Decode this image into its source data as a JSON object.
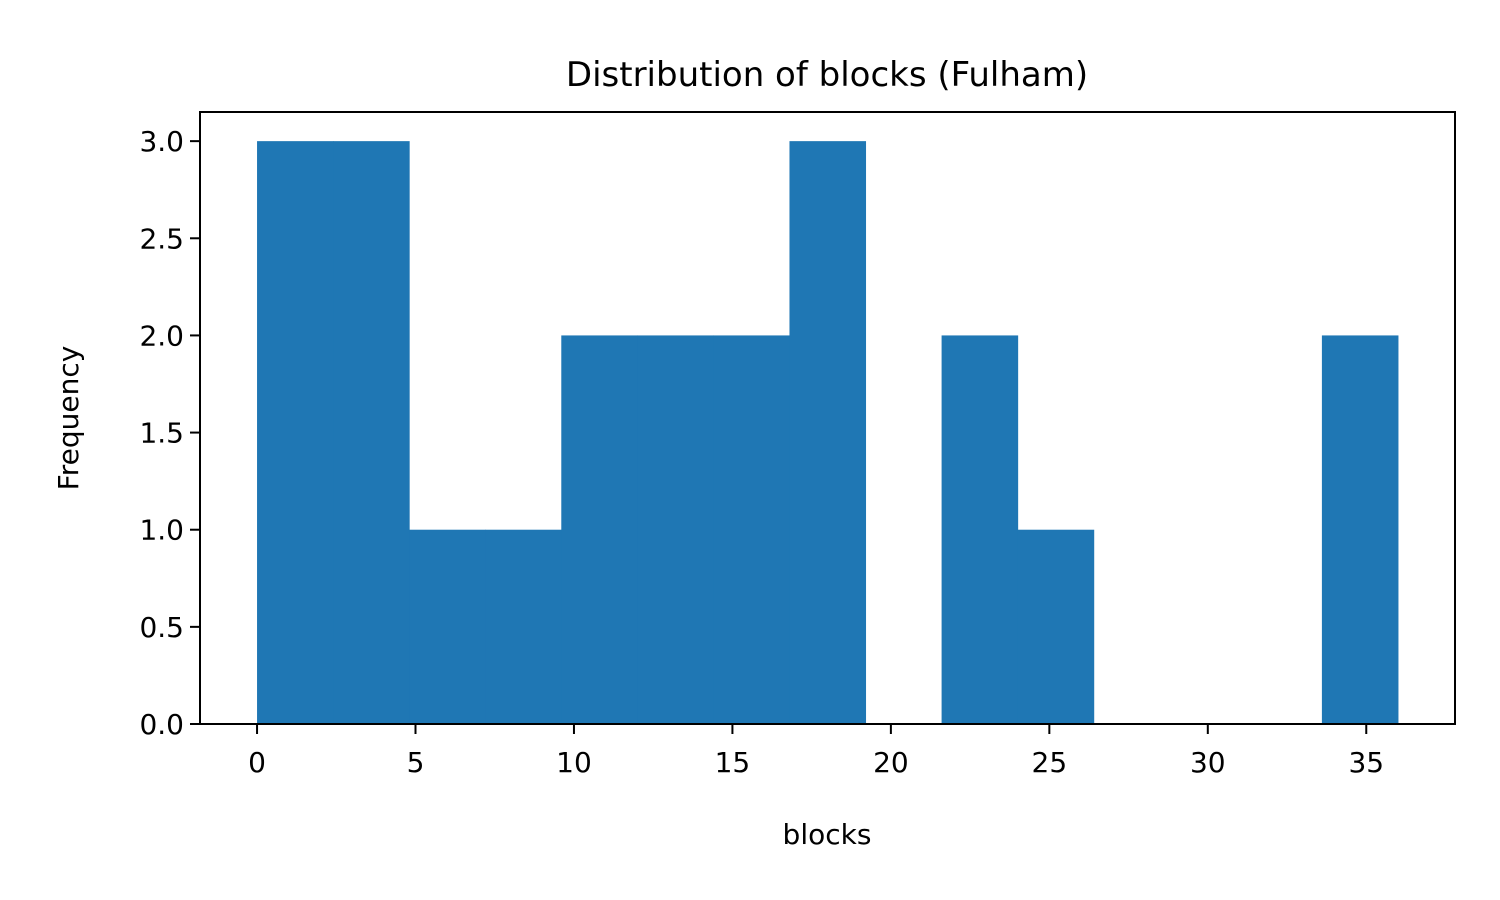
{
  "chart_data": {
    "type": "bar",
    "title": "Distribution of blocks (Fulham)",
    "xlabel": "blocks",
    "ylabel": "Frequency",
    "color": "#1f77b4",
    "xlim": [
      -1.8,
      37.8
    ],
    "ylim": [
      0,
      3.15
    ],
    "xticks": [
      0,
      5,
      10,
      15,
      20,
      25,
      30,
      35
    ],
    "xtick_labels": [
      "0",
      "5",
      "10",
      "15",
      "20",
      "25",
      "30",
      "35"
    ],
    "yticks": [
      0,
      0.5,
      1.0,
      1.5,
      2.0,
      2.5,
      3.0
    ],
    "ytick_labels": [
      "0.0",
      "0.5",
      "1.0",
      "1.5",
      "2.0",
      "2.5",
      "3.0"
    ],
    "bin_edges": [
      0,
      2.4,
      4.8,
      7.2,
      9.6,
      12.0,
      14.4,
      16.8,
      19.2,
      21.6,
      24.0,
      26.4,
      28.8,
      31.2,
      33.6,
      36.0
    ],
    "counts": [
      3,
      3,
      1,
      1,
      2,
      2,
      2,
      3,
      0,
      2,
      1,
      0,
      0,
      0,
      2
    ],
    "grid": false,
    "legend": false
  }
}
